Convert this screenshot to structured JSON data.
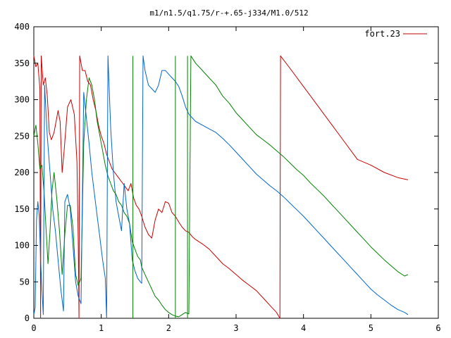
{
  "chart_data": {
    "type": "line",
    "title": "m1/n1.5/q1.75/r-+.65-j334/M1.0/512",
    "xlabel": "",
    "ylabel": "",
    "xlim": [
      0,
      6
    ],
    "ylim": [
      0,
      400
    ],
    "xticks": [
      "0",
      "1",
      "2",
      "3",
      "4",
      "5",
      "6"
    ],
    "yticks": [
      "0",
      "50",
      "100",
      "150",
      "200",
      "250",
      "300",
      "350",
      "400"
    ],
    "legend": {
      "placement": "top-right",
      "entries": [
        "fort.23"
      ]
    },
    "grid": false,
    "series": [
      {
        "name": "fort.23",
        "color": "#cc0000",
        "points": [
          [
            0,
            360
          ],
          [
            0.03,
            345
          ],
          [
            0.06,
            350
          ],
          [
            0.09,
            315
          ],
          [
            0.1,
            0
          ],
          [
            0.11,
            360
          ],
          [
            0.14,
            320
          ],
          [
            0.17,
            330
          ],
          [
            0.2,
            305
          ],
          [
            0.23,
            255
          ],
          [
            0.26,
            245
          ],
          [
            0.3,
            255
          ],
          [
            0.33,
            270
          ],
          [
            0.36,
            285
          ],
          [
            0.39,
            270
          ],
          [
            0.42,
            200
          ],
          [
            0.45,
            230
          ],
          [
            0.5,
            290
          ],
          [
            0.55,
            300
          ],
          [
            0.6,
            280
          ],
          [
            0.64,
            215
          ],
          [
            0.66,
            100
          ],
          [
            0.67,
            0
          ],
          [
            0.68,
            360
          ],
          [
            0.72,
            340
          ],
          [
            0.76,
            340
          ],
          [
            0.8,
            325
          ],
          [
            0.84,
            320
          ],
          [
            0.88,
            300
          ],
          [
            0.92,
            285
          ],
          [
            0.96,
            265
          ],
          [
            1.0,
            250
          ],
          [
            1.04,
            240
          ],
          [
            1.08,
            225
          ],
          [
            1.12,
            215
          ],
          [
            1.16,
            205
          ],
          [
            1.2,
            200
          ],
          [
            1.24,
            195
          ],
          [
            1.28,
            190
          ],
          [
            1.32,
            185
          ],
          [
            1.36,
            180
          ],
          [
            1.4,
            175
          ],
          [
            1.44,
            185
          ],
          [
            1.48,
            165
          ],
          [
            1.52,
            155
          ],
          [
            1.56,
            150
          ],
          [
            1.6,
            140
          ],
          [
            1.65,
            125
          ],
          [
            1.7,
            115
          ],
          [
            1.75,
            110
          ],
          [
            1.8,
            135
          ],
          [
            1.85,
            150
          ],
          [
            1.9,
            145
          ],
          [
            1.95,
            160
          ],
          [
            2.0,
            158
          ],
          [
            2.05,
            145
          ],
          [
            2.1,
            140
          ],
          [
            2.15,
            132
          ],
          [
            2.2,
            125
          ],
          [
            2.25,
            120
          ],
          [
            2.3,
            118
          ],
          [
            2.35,
            112
          ],
          [
            2.4,
            108
          ],
          [
            2.5,
            102
          ],
          [
            2.6,
            95
          ],
          [
            2.7,
            85
          ],
          [
            2.8,
            75
          ],
          [
            2.9,
            68
          ],
          [
            3.0,
            60
          ],
          [
            3.1,
            52
          ],
          [
            3.2,
            45
          ],
          [
            3.3,
            38
          ],
          [
            3.4,
            28
          ],
          [
            3.5,
            18
          ],
          [
            3.6,
            8
          ],
          [
            3.65,
            0
          ],
          [
            3.66,
            360
          ],
          [
            3.8,
            343
          ],
          [
            4.0,
            318
          ],
          [
            4.2,
            293
          ],
          [
            4.4,
            268
          ],
          [
            4.6,
            243
          ],
          [
            4.8,
            218
          ],
          [
            5.0,
            210
          ],
          [
            5.2,
            200
          ],
          [
            5.4,
            193
          ],
          [
            5.55,
            190
          ]
        ]
      },
      {
        "name": "",
        "color": "#008000",
        "points": [
          [
            0,
            250
          ],
          [
            0.03,
            265
          ],
          [
            0.06,
            240
          ],
          [
            0.09,
            205
          ],
          [
            0.12,
            210
          ],
          [
            0.15,
            175
          ],
          [
            0.18,
            125
          ],
          [
            0.21,
            75
          ],
          [
            0.24,
            120
          ],
          [
            0.27,
            175
          ],
          [
            0.3,
            200
          ],
          [
            0.34,
            165
          ],
          [
            0.38,
            120
          ],
          [
            0.42,
            60
          ],
          [
            0.46,
            115
          ],
          [
            0.5,
            155
          ],
          [
            0.54,
            155
          ],
          [
            0.58,
            125
          ],
          [
            0.62,
            60
          ],
          [
            0.66,
            45
          ],
          [
            0.7,
            55
          ],
          [
            0.74,
            240
          ],
          [
            0.78,
            300
          ],
          [
            0.82,
            330
          ],
          [
            0.86,
            320
          ],
          [
            0.9,
            300
          ],
          [
            0.94,
            270
          ],
          [
            0.98,
            250
          ],
          [
            1.02,
            230
          ],
          [
            1.06,
            210
          ],
          [
            1.1,
            195
          ],
          [
            1.14,
            185
          ],
          [
            1.18,
            175
          ],
          [
            1.22,
            170
          ],
          [
            1.26,
            160
          ],
          [
            1.3,
            155
          ],
          [
            1.34,
            145
          ],
          [
            1.38,
            140
          ],
          [
            1.42,
            130
          ],
          [
            1.46,
            105
          ],
          [
            1.5,
            95
          ],
          [
            1.54,
            85
          ],
          [
            1.58,
            80
          ],
          [
            1.6,
            70
          ],
          [
            1.65,
            60
          ],
          [
            1.7,
            50
          ],
          [
            1.75,
            40
          ],
          [
            1.8,
            30
          ],
          [
            1.85,
            25
          ],
          [
            1.9,
            18
          ],
          [
            1.95,
            12
          ],
          [
            2.0,
            8
          ],
          [
            2.05,
            5
          ],
          [
            2.1,
            3
          ],
          [
            2.15,
            2
          ],
          [
            2.2,
            5
          ],
          [
            2.25,
            8
          ],
          [
            2.3,
            6
          ],
          [
            2.33,
            360
          ],
          [
            2.4,
            350
          ],
          [
            2.5,
            340
          ],
          [
            2.6,
            330
          ],
          [
            2.7,
            320
          ],
          [
            2.8,
            305
          ],
          [
            2.9,
            295
          ],
          [
            3.0,
            282
          ],
          [
            3.1,
            272
          ],
          [
            3.2,
            262
          ],
          [
            3.3,
            252
          ],
          [
            3.4,
            245
          ],
          [
            3.5,
            238
          ],
          [
            3.6,
            230
          ],
          [
            3.7,
            222
          ],
          [
            3.8,
            213
          ],
          [
            3.9,
            204
          ],
          [
            4.0,
            196
          ],
          [
            4.1,
            186
          ],
          [
            4.2,
            177
          ],
          [
            4.3,
            168
          ],
          [
            4.4,
            158
          ],
          [
            4.5,
            148
          ],
          [
            4.6,
            138
          ],
          [
            4.7,
            128
          ],
          [
            4.8,
            118
          ],
          [
            4.9,
            108
          ],
          [
            5.0,
            98
          ],
          [
            5.1,
            89
          ],
          [
            5.2,
            80
          ],
          [
            5.3,
            72
          ],
          [
            5.4,
            64
          ],
          [
            5.5,
            58
          ],
          [
            5.55,
            60
          ]
        ]
      },
      {
        "name": "",
        "color": "#0066cc",
        "points": [
          [
            0,
            5
          ],
          [
            0.02,
            15
          ],
          [
            0.04,
            135
          ],
          [
            0.06,
            160
          ],
          [
            0.08,
            140
          ],
          [
            0.1,
            80
          ],
          [
            0.12,
            40
          ],
          [
            0.14,
            5
          ],
          [
            0.16,
            320
          ],
          [
            0.2,
            250
          ],
          [
            0.24,
            200
          ],
          [
            0.28,
            150
          ],
          [
            0.32,
            120
          ],
          [
            0.36,
            80
          ],
          [
            0.4,
            40
          ],
          [
            0.44,
            10
          ],
          [
            0.46,
            160
          ],
          [
            0.5,
            170
          ],
          [
            0.54,
            150
          ],
          [
            0.58,
            100
          ],
          [
            0.6,
            75
          ],
          [
            0.62,
            50
          ],
          [
            0.66,
            30
          ],
          [
            0.7,
            20
          ],
          [
            0.74,
            310
          ],
          [
            0.78,
            275
          ],
          [
            0.82,
            240
          ],
          [
            0.86,
            200
          ],
          [
            0.9,
            170
          ],
          [
            0.94,
            140
          ],
          [
            0.98,
            110
          ],
          [
            1.02,
            80
          ],
          [
            1.06,
            55
          ],
          [
            1.08,
            0
          ],
          [
            1.1,
            360
          ],
          [
            1.14,
            260
          ],
          [
            1.18,
            200
          ],
          [
            1.22,
            160
          ],
          [
            1.26,
            140
          ],
          [
            1.3,
            120
          ],
          [
            1.34,
            185
          ],
          [
            1.38,
            150
          ],
          [
            1.42,
            130
          ],
          [
            1.46,
            80
          ],
          [
            1.5,
            65
          ],
          [
            1.54,
            55
          ],
          [
            1.58,
            50
          ],
          [
            1.6,
            48
          ],
          [
            1.62,
            360
          ],
          [
            1.65,
            340
          ],
          [
            1.7,
            320
          ],
          [
            1.75,
            315
          ],
          [
            1.8,
            310
          ],
          [
            1.85,
            320
          ],
          [
            1.9,
            340
          ],
          [
            1.95,
            340
          ],
          [
            2.0,
            335
          ],
          [
            2.05,
            330
          ],
          [
            2.1,
            325
          ],
          [
            2.15,
            318
          ],
          [
            2.2,
            305
          ],
          [
            2.25,
            290
          ],
          [
            2.3,
            280
          ],
          [
            2.35,
            275
          ],
          [
            2.4,
            270
          ],
          [
            2.5,
            265
          ],
          [
            2.6,
            260
          ],
          [
            2.7,
            255
          ],
          [
            2.8,
            247
          ],
          [
            2.9,
            238
          ],
          [
            3.0,
            228
          ],
          [
            3.1,
            218
          ],
          [
            3.2,
            208
          ],
          [
            3.3,
            198
          ],
          [
            3.4,
            190
          ],
          [
            3.5,
            182
          ],
          [
            3.6,
            175
          ],
          [
            3.7,
            167
          ],
          [
            3.8,
            158
          ],
          [
            3.9,
            149
          ],
          [
            4.0,
            140
          ],
          [
            4.1,
            130
          ],
          [
            4.2,
            120
          ],
          [
            4.3,
            110
          ],
          [
            4.4,
            100
          ],
          [
            4.5,
            90
          ],
          [
            4.6,
            80
          ],
          [
            4.7,
            70
          ],
          [
            4.8,
            60
          ],
          [
            4.9,
            50
          ],
          [
            5.0,
            40
          ],
          [
            5.1,
            32
          ],
          [
            5.2,
            25
          ],
          [
            5.3,
            18
          ],
          [
            5.4,
            12
          ],
          [
            5.5,
            8
          ],
          [
            5.55,
            5
          ]
        ]
      },
      {
        "name": "",
        "color": "#008000",
        "points": [
          [
            1.47,
            0
          ],
          [
            1.47,
            360
          ]
        ]
      },
      {
        "name": "",
        "color": "#008000",
        "points": [
          [
            2.1,
            0
          ],
          [
            2.1,
            360
          ]
        ]
      },
      {
        "name": "",
        "color": "#008000",
        "points": [
          [
            2.28,
            0
          ],
          [
            2.28,
            360
          ]
        ]
      }
    ]
  }
}
